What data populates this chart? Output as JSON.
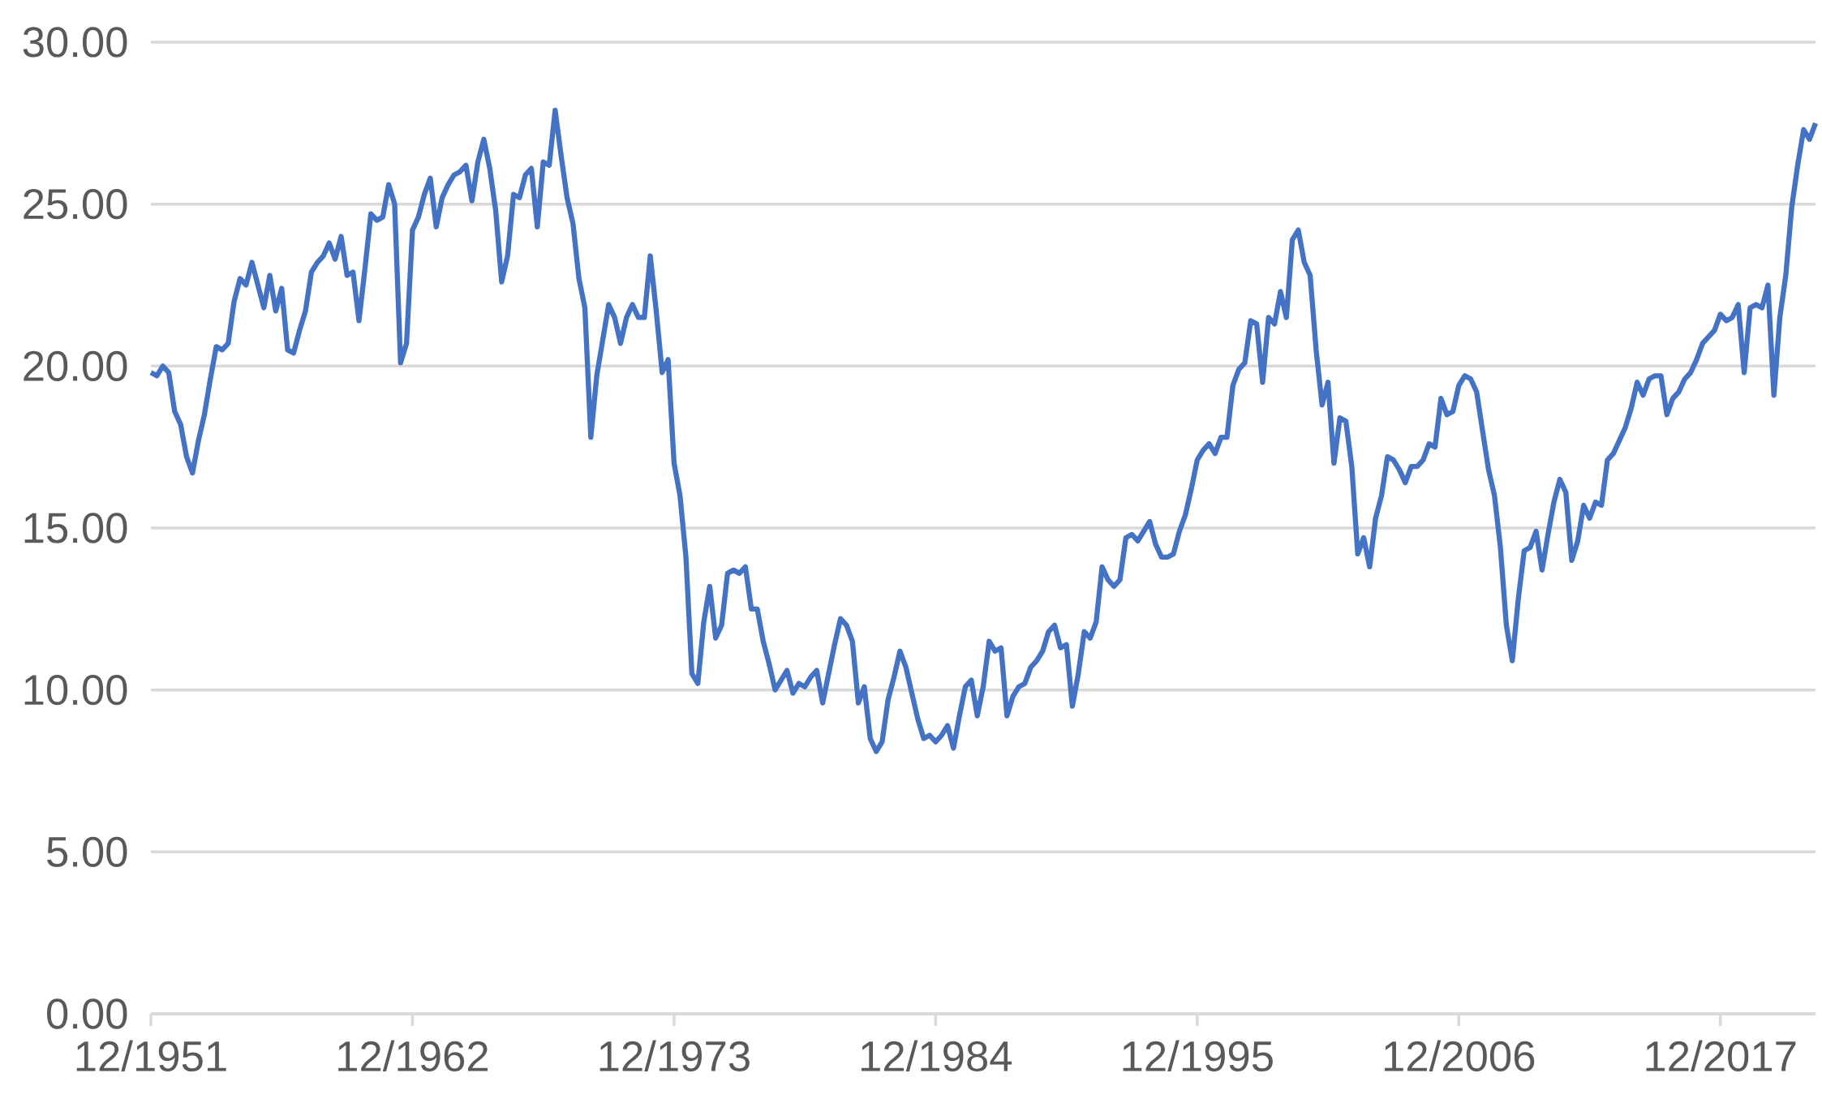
{
  "chart_data": {
    "type": "line",
    "color": "#4472c4",
    "marker": "none",
    "line_style": "solid",
    "grid": "y",
    "xlim": [
      "1951-12",
      "2021-12"
    ],
    "xticks": [
      {
        "value": "1951-12",
        "label": "12/1951"
      },
      {
        "value": "1962-12",
        "label": "12/1962"
      },
      {
        "value": "1973-12",
        "label": "12/1973"
      },
      {
        "value": "1984-12",
        "label": "12/1984"
      },
      {
        "value": "1995-12",
        "label": "12/1995"
      },
      {
        "value": "2006-12",
        "label": "12/2006"
      },
      {
        "value": "2017-12",
        "label": "12/2017"
      }
    ],
    "ylim": [
      0,
      30
    ],
    "yticks": [
      {
        "value": 0,
        "label": "0.00"
      },
      {
        "value": 5,
        "label": "5.00"
      },
      {
        "value": 10,
        "label": "10.00"
      },
      {
        "value": 15,
        "label": "15.00"
      },
      {
        "value": 20,
        "label": "20.00"
      },
      {
        "value": 25,
        "label": "25.00"
      },
      {
        "value": 30,
        "label": "30.00"
      }
    ],
    "x": [
      "1951-12",
      "1952-03",
      "1952-06",
      "1952-09",
      "1952-12",
      "1953-03",
      "1953-06",
      "1953-09",
      "1953-12",
      "1954-03",
      "1954-06",
      "1954-09",
      "1954-12",
      "1955-03",
      "1955-06",
      "1955-09",
      "1955-12",
      "1956-03",
      "1956-06",
      "1956-09",
      "1956-12",
      "1957-03",
      "1957-06",
      "1957-09",
      "1957-12",
      "1958-03",
      "1958-06",
      "1958-09",
      "1958-12",
      "1959-03",
      "1959-06",
      "1959-09",
      "1959-12",
      "1960-03",
      "1960-06",
      "1960-09",
      "1960-12",
      "1961-03",
      "1961-06",
      "1961-09",
      "1961-12",
      "1962-03",
      "1962-06",
      "1962-09",
      "1962-12",
      "1963-03",
      "1963-06",
      "1963-09",
      "1963-12",
      "1964-03",
      "1964-06",
      "1964-09",
      "1964-12",
      "1965-03",
      "1965-06",
      "1965-09",
      "1965-12",
      "1966-03",
      "1966-06",
      "1966-09",
      "1966-12",
      "1967-03",
      "1967-06",
      "1967-09",
      "1967-12",
      "1968-03",
      "1968-06",
      "1968-09",
      "1968-12",
      "1969-03",
      "1969-06",
      "1969-09",
      "1969-12",
      "1970-03",
      "1970-06",
      "1970-09",
      "1970-12",
      "1971-03",
      "1971-06",
      "1971-09",
      "1971-12",
      "1972-03",
      "1972-06",
      "1972-09",
      "1972-12",
      "1973-03",
      "1973-06",
      "1973-09",
      "1973-12",
      "1974-03",
      "1974-06",
      "1974-09",
      "1974-12",
      "1975-03",
      "1975-06",
      "1975-09",
      "1975-12",
      "1976-03",
      "1976-06",
      "1976-09",
      "1976-12",
      "1977-03",
      "1977-06",
      "1977-09",
      "1977-12",
      "1978-03",
      "1978-06",
      "1978-09",
      "1978-12",
      "1979-03",
      "1979-06",
      "1979-09",
      "1979-12",
      "1980-03",
      "1980-06",
      "1980-09",
      "1980-12",
      "1981-03",
      "1981-06",
      "1981-09",
      "1981-12",
      "1982-03",
      "1982-06",
      "1982-09",
      "1982-12",
      "1983-03",
      "1983-06",
      "1983-09",
      "1983-12",
      "1984-03",
      "1984-06",
      "1984-09",
      "1984-12",
      "1985-03",
      "1985-06",
      "1985-09",
      "1985-12",
      "1986-03",
      "1986-06",
      "1986-09",
      "1986-12",
      "1987-03",
      "1987-06",
      "1987-09",
      "1987-12",
      "1988-03",
      "1988-06",
      "1988-09",
      "1988-12",
      "1989-03",
      "1989-06",
      "1989-09",
      "1989-12",
      "1990-03",
      "1990-06",
      "1990-09",
      "1990-12",
      "1991-03",
      "1991-06",
      "1991-09",
      "1991-12",
      "1992-03",
      "1992-06",
      "1992-09",
      "1992-12",
      "1993-03",
      "1993-06",
      "1993-09",
      "1993-12",
      "1994-03",
      "1994-06",
      "1994-09",
      "1994-12",
      "1995-03",
      "1995-06",
      "1995-09",
      "1995-12",
      "1996-03",
      "1996-06",
      "1996-09",
      "1996-12",
      "1997-03",
      "1997-06",
      "1997-09",
      "1997-12",
      "1998-03",
      "1998-06",
      "1998-09",
      "1998-12",
      "1999-03",
      "1999-06",
      "1999-09",
      "1999-12",
      "2000-03",
      "2000-06",
      "2000-09",
      "2000-12",
      "2001-03",
      "2001-06",
      "2001-09",
      "2001-12",
      "2002-03",
      "2002-06",
      "2002-09",
      "2002-12",
      "2003-03",
      "2003-06",
      "2003-09",
      "2003-12",
      "2004-03",
      "2004-06",
      "2004-09",
      "2004-12",
      "2005-03",
      "2005-06",
      "2005-09",
      "2005-12",
      "2006-03",
      "2006-06",
      "2006-09",
      "2006-12",
      "2007-03",
      "2007-06",
      "2007-09",
      "2007-12",
      "2008-03",
      "2008-06",
      "2008-09",
      "2008-12",
      "2009-03",
      "2009-06",
      "2009-09",
      "2009-12",
      "2010-03",
      "2010-06",
      "2010-09",
      "2010-12",
      "2011-03",
      "2011-06",
      "2011-09",
      "2011-12",
      "2012-03",
      "2012-06",
      "2012-09",
      "2012-12",
      "2013-03",
      "2013-06",
      "2013-09",
      "2013-12",
      "2014-03",
      "2014-06",
      "2014-09",
      "2014-12",
      "2015-03",
      "2015-06",
      "2015-09",
      "2015-12",
      "2016-03",
      "2016-06",
      "2016-09",
      "2016-12",
      "2017-03",
      "2017-06",
      "2017-09",
      "2017-12",
      "2018-03",
      "2018-06",
      "2018-09",
      "2018-12",
      "2019-03",
      "2019-06",
      "2019-09",
      "2019-12",
      "2020-03",
      "2020-06",
      "2020-09",
      "2020-12",
      "2021-03",
      "2021-06",
      "2021-09",
      "2021-12"
    ],
    "values": [
      19.8,
      19.7,
      20.0,
      19.8,
      18.6,
      18.2,
      17.2,
      16.7,
      17.7,
      18.5,
      19.6,
      20.6,
      20.5,
      20.7,
      22.0,
      22.7,
      22.5,
      23.2,
      22.5,
      21.8,
      22.8,
      21.7,
      22.4,
      20.5,
      20.4,
      21.1,
      21.7,
      22.9,
      23.2,
      23.4,
      23.8,
      23.3,
      24.0,
      22.8,
      22.9,
      21.4,
      23.0,
      24.7,
      24.5,
      24.6,
      25.6,
      25.0,
      20.1,
      20.7,
      24.2,
      24.6,
      25.3,
      25.8,
      24.3,
      25.2,
      25.6,
      25.9,
      26.0,
      26.2,
      25.1,
      26.3,
      27.0,
      26.1,
      24.8,
      22.6,
      23.4,
      25.3,
      25.2,
      25.9,
      26.1,
      24.3,
      26.3,
      26.2,
      27.9,
      26.5,
      25.2,
      24.4,
      22.7,
      21.8,
      17.8,
      19.7,
      20.8,
      21.9,
      21.5,
      20.7,
      21.5,
      21.9,
      21.5,
      21.5,
      23.4,
      21.7,
      19.8,
      20.2,
      17.0,
      16.0,
      14.1,
      10.5,
      10.2,
      12.1,
      13.2,
      11.6,
      12.0,
      13.6,
      13.7,
      13.6,
      13.8,
      12.5,
      12.5,
      11.5,
      10.8,
      10.0,
      10.3,
      10.6,
      9.9,
      10.2,
      10.1,
      10.4,
      10.6,
      9.6,
      10.5,
      11.4,
      12.2,
      12.0,
      11.5,
      9.6,
      10.1,
      8.5,
      8.1,
      8.4,
      9.7,
      10.4,
      11.2,
      10.7,
      9.9,
      9.1,
      8.5,
      8.6,
      8.4,
      8.6,
      8.9,
      8.2,
      9.2,
      10.1,
      10.3,
      9.2,
      10.1,
      11.5,
      11.2,
      11.3,
      9.2,
      9.8,
      10.1,
      10.2,
      10.7,
      10.9,
      11.2,
      11.8,
      12.0,
      11.3,
      11.4,
      9.5,
      10.5,
      11.8,
      11.6,
      12.1,
      13.8,
      13.4,
      13.2,
      13.4,
      14.7,
      14.8,
      14.6,
      14.9,
      15.2,
      14.5,
      14.1,
      14.1,
      14.2,
      14.9,
      15.4,
      16.2,
      17.1,
      17.4,
      17.6,
      17.3,
      17.8,
      17.8,
      19.4,
      19.9,
      20.1,
      21.4,
      21.3,
      19.5,
      21.5,
      21.3,
      22.3,
      21.5,
      23.9,
      24.2,
      23.2,
      22.8,
      20.5,
      18.8,
      19.5,
      17.0,
      18.4,
      18.3,
      16.9,
      14.2,
      14.7,
      13.8,
      15.3,
      16.0,
      17.2,
      17.1,
      16.8,
      16.4,
      16.9,
      16.9,
      17.1,
      17.6,
      17.5,
      19.0,
      18.5,
      18.6,
      19.4,
      19.7,
      19.6,
      19.2,
      18.0,
      16.8,
      16.0,
      14.4,
      12.0,
      10.9,
      12.8,
      14.3,
      14.4,
      14.9,
      13.7,
      14.8,
      15.8,
      16.5,
      16.1,
      14.0,
      14.6,
      15.7,
      15.3,
      15.8,
      15.7,
      17.1,
      17.3,
      17.7,
      18.1,
      18.7,
      19.5,
      19.1,
      19.6,
      19.7,
      19.7,
      18.5,
      19.0,
      19.2,
      19.6,
      19.8,
      20.2,
      20.7,
      20.9,
      21.1,
      21.6,
      21.4,
      21.5,
      21.9,
      19.8,
      21.8,
      21.9,
      21.8,
      22.5,
      19.1,
      21.5,
      22.8,
      24.9,
      26.2,
      27.3,
      27.0,
      27.5
    ]
  }
}
